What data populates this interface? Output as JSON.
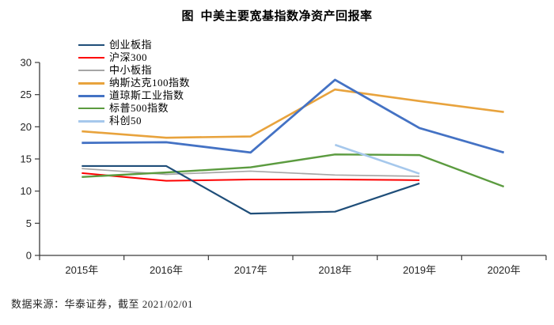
{
  "chart_data": {
    "type": "line",
    "title": "图  中美主要宽基指数净资产回报率",
    "categories": [
      "2015年",
      "2016年",
      "2017年",
      "2018年",
      "2019年",
      "2020年"
    ],
    "series": [
      {
        "name": "创业板指",
        "color": "#1F4E79",
        "line_width": 2.2,
        "values": [
          13.9,
          13.9,
          6.5,
          6.8,
          11.2,
          null
        ]
      },
      {
        "name": "沪深300",
        "color": "#FE0000",
        "line_width": 2.0,
        "values": [
          12.8,
          11.6,
          11.8,
          11.8,
          11.7,
          null
        ]
      },
      {
        "name": "中小板指",
        "color": "#A6A6A6",
        "line_width": 1.7,
        "values": [
          13.5,
          12.6,
          13.1,
          12.5,
          12.3,
          null
        ]
      },
      {
        "name": "纳斯达克100指数",
        "color": "#E8A33D",
        "line_width": 2.6,
        "values": [
          19.3,
          18.3,
          18.5,
          25.8,
          24.0,
          22.3
        ]
      },
      {
        "name": "道琼斯工业指数",
        "color": "#4472C4",
        "line_width": 2.8,
        "values": [
          17.5,
          17.6,
          16.0,
          27.3,
          19.8,
          16.0
        ]
      },
      {
        "name": "标普500指数",
        "color": "#5B9B3F",
        "line_width": 2.4,
        "values": [
          12.2,
          12.9,
          13.7,
          15.7,
          15.6,
          10.7
        ]
      },
      {
        "name": "科创50",
        "color": "#A6C8EC",
        "line_width": 2.6,
        "values": [
          null,
          null,
          null,
          17.2,
          12.7,
          null
        ]
      }
    ],
    "ylim": [
      0,
      30
    ],
    "ytick_step": 5,
    "yticks": [
      "0",
      "5",
      "10",
      "15",
      "20",
      "25",
      "30"
    ],
    "grid": false,
    "legend_position": "top-left",
    "axis_color": "#3b3b3b",
    "footer": "数据来源：华泰证券，截至 2021/02/01"
  }
}
